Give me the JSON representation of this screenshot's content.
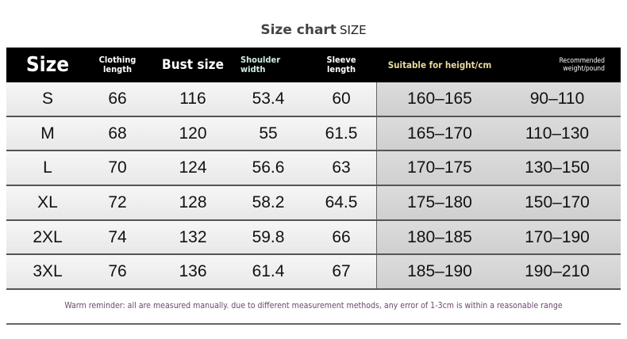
{
  "title": "Size chart",
  "title_sub": "SIZE",
  "headers": [
    "Size",
    "Clothing length",
    "Bust size",
    "Shoulder width",
    "Sleeve length",
    "Suitable for height/cm",
    "Recommended weight/pound"
  ],
  "header_colors": {
    "default": "#ffffff",
    "shoulder": "#cdeee6",
    "height": "#e8d9a0"
  },
  "rows": [
    [
      "S",
      "66",
      "116",
      "53.4",
      "60",
      "160–165",
      "90–110"
    ],
    [
      "M",
      "68",
      "120",
      "55",
      "61.5",
      "165–170",
      "110–130"
    ],
    [
      "L",
      "70",
      "124",
      "56.6",
      "63",
      "170–175",
      "130–150"
    ],
    [
      "XL",
      "72",
      "128",
      "58.2",
      "64.5",
      "175–180",
      "150–170"
    ],
    [
      "2XL",
      "74",
      "132",
      "59.8",
      "66",
      "180–185",
      "170–190"
    ],
    [
      "3XL",
      "76",
      "136",
      "61.4",
      "67",
      "185–190",
      "190–210"
    ]
  ],
  "note": "Warm reminder: all are measured manually. due to different measurement methods, any error of 1-3cm is within a reasonable range"
}
